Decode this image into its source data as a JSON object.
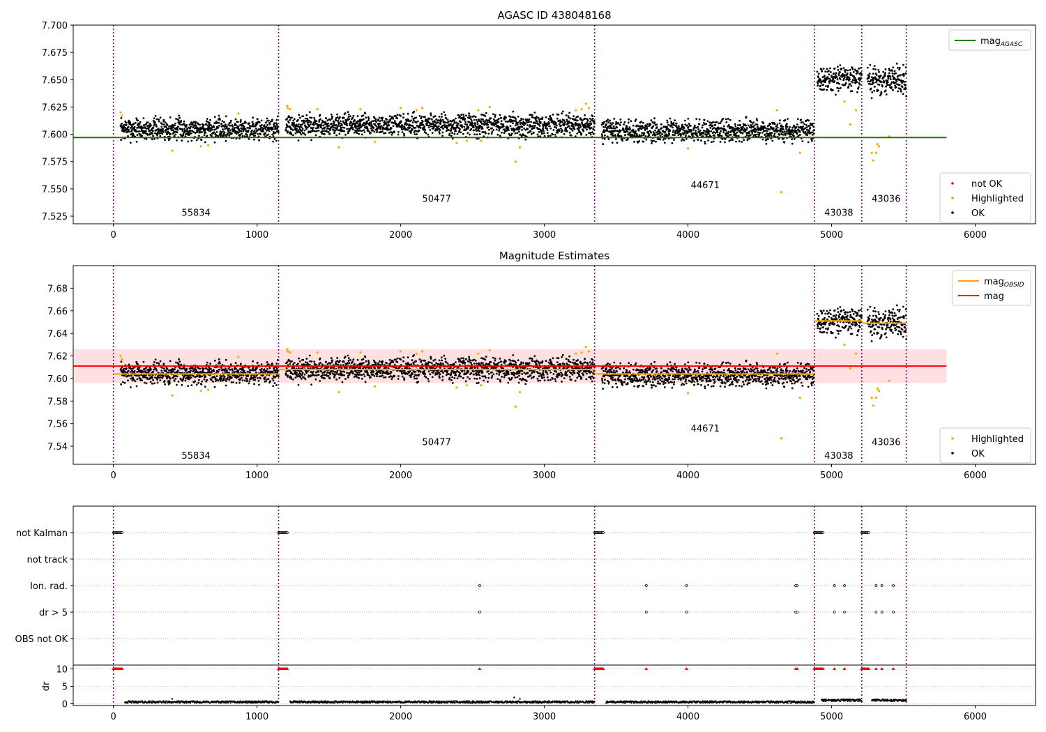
{
  "chart_data": [
    {
      "type": "scatter",
      "title": "AGASC ID 438048168",
      "xlim": [
        -280,
        6420
      ],
      "ylim": [
        7.518,
        7.7
      ],
      "x_ticks": [
        0,
        1000,
        2000,
        3000,
        4000,
        5000,
        6000
      ],
      "y_ticks": [
        "7.525",
        "7.550",
        "7.575",
        "7.600",
        "7.625",
        "7.650",
        "7.675",
        "7.700"
      ],
      "grid": false,
      "legend_top": {
        "position": "top-right",
        "entries": [
          {
            "label": "mag",
            "sub": "AGASC",
            "color": "#008000"
          }
        ]
      },
      "legend_bottom": {
        "position": "bottom-right",
        "entries": [
          {
            "label": "not OK",
            "color": "#ff0000"
          },
          {
            "label": "Highlighted",
            "color": "#ffa500"
          },
          {
            "label": "OK",
            "color": "#000000"
          }
        ]
      },
      "mag_agasc": 7.597,
      "mag_agasc_x": [
        -280,
        5800
      ],
      "obs_boundaries": [
        0,
        1150,
        3350,
        4880,
        5210,
        5520
      ],
      "segments": [
        {
          "obsid": "55834",
          "x_start": 50,
          "x_end": 1150,
          "mean": 7.605,
          "scatter": 0.005
        },
        {
          "obsid": "50477",
          "x_start": 1200,
          "x_end": 3350,
          "mean": 7.608,
          "scatter": 0.005
        },
        {
          "obsid": "44671",
          "x_start": 3400,
          "x_end": 4880,
          "mean": 7.603,
          "scatter": 0.005
        },
        {
          "obsid": "43038",
          "x_start": 4900,
          "x_end": 5210,
          "mean": 7.651,
          "scatter": 0.006
        },
        {
          "obsid": "43036",
          "x_start": 5250,
          "x_end": 5520,
          "mean": 7.649,
          "scatter": 0.006
        }
      ],
      "obsid_labels": [
        {
          "text": "55834",
          "x": 575,
          "y": 7.5255
        },
        {
          "text": "50477",
          "x": 2250,
          "y": 7.538
        },
        {
          "text": "44671",
          "x": 4120,
          "y": 7.5505
        },
        {
          "text": "43038",
          "x": 5050,
          "y": 7.5255
        },
        {
          "text": "43036",
          "x": 5380,
          "y": 7.538
        }
      ],
      "highlighted_points": [
        [
          50,
          7.62
        ],
        [
          60,
          7.617
        ],
        [
          410,
          7.585
        ],
        [
          610,
          7.589
        ],
        [
          660,
          7.59
        ],
        [
          870,
          7.619
        ],
        [
          1210,
          7.626
        ],
        [
          1215,
          7.624
        ],
        [
          1230,
          7.623
        ],
        [
          1420,
          7.623
        ],
        [
          1570,
          7.588
        ],
        [
          1720,
          7.623
        ],
        [
          1820,
          7.593
        ],
        [
          2000,
          7.624
        ],
        [
          2110,
          7.622
        ],
        [
          2150,
          7.624
        ],
        [
          2390,
          7.592
        ],
        [
          2460,
          7.594
        ],
        [
          2540,
          7.622
        ],
        [
          2560,
          7.594
        ],
        [
          2620,
          7.625
        ],
        [
          2800,
          7.575
        ],
        [
          2830,
          7.588
        ],
        [
          3220,
          7.622
        ],
        [
          3260,
          7.623
        ],
        [
          3290,
          7.628
        ],
        [
          3310,
          7.624
        ],
        [
          4000,
          7.587
        ],
        [
          4650,
          7.547
        ],
        [
          4780,
          7.583
        ],
        [
          4620,
          7.622
        ],
        [
          5090,
          7.63
        ],
        [
          5130,
          7.609
        ],
        [
          5170,
          7.622
        ],
        [
          5280,
          7.583
        ],
        [
          5290,
          7.576
        ],
        [
          5310,
          7.583
        ],
        [
          5320,
          7.591
        ],
        [
          5330,
          7.589
        ],
        [
          5400,
          7.598
        ]
      ],
      "not_ok_points": []
    },
    {
      "type": "scatter",
      "title": "Magnitude Estimates",
      "xlim": [
        -280,
        6420
      ],
      "ylim": [
        7.524,
        7.7
      ],
      "x_ticks": [
        0,
        1000,
        2000,
        3000,
        4000,
        5000,
        6000
      ],
      "y_ticks": [
        "7.54",
        "7.56",
        "7.58",
        "7.60",
        "7.62",
        "7.64",
        "7.66",
        "7.68"
      ],
      "grid": false,
      "legend_top": {
        "position": "top-right",
        "entries": [
          {
            "label": "mag",
            "sub": "OBSID",
            "color": "#ffa500"
          },
          {
            "label": "mag",
            "sub": "",
            "color": "#ff0000"
          }
        ]
      },
      "legend_bottom": {
        "position": "bottom-right",
        "entries": [
          {
            "label": "Highlighted",
            "color": "#ffa500"
          },
          {
            "label": "OK",
            "color": "#000000"
          }
        ]
      },
      "mag": 7.611,
      "mag_band": [
        7.596,
        7.626
      ],
      "mag_x": [
        -280,
        5800
      ],
      "mag_obsid": [
        {
          "x_start": 0,
          "x_end": 1150,
          "y": 7.604
        },
        {
          "x_start": 1150,
          "x_end": 3350,
          "y": 7.608
        },
        {
          "x_start": 3350,
          "x_end": 4880,
          "y": 7.604
        },
        {
          "x_start": 4880,
          "x_end": 5210,
          "y": 7.651
        },
        {
          "x_start": 5210,
          "x_end": 5520,
          "y": 7.649
        }
      ],
      "obsid_labels": [
        {
          "text": "55834",
          "x": 575,
          "y": 7.529
        },
        {
          "text": "50477",
          "x": 2250,
          "y": 7.541
        },
        {
          "text": "44671",
          "x": 4120,
          "y": 7.553
        },
        {
          "text": "43038",
          "x": 5050,
          "y": 7.529
        },
        {
          "text": "43036",
          "x": 5380,
          "y": 7.541
        }
      ]
    },
    {
      "type": "scatter",
      "title": "",
      "xlim": [
        -280,
        6420
      ],
      "x_ticks": [
        0,
        1000,
        2000,
        3000,
        4000,
        5000,
        6000
      ],
      "flag_rows": [
        "not Kalman",
        "not track",
        "Ion. rad.",
        "dr > 5",
        "OBS not OK"
      ],
      "flag_points": {
        "not Kalman": [
          [
            0,
            60
          ],
          [
            1150,
            1210
          ],
          [
            3350,
            3410
          ],
          [
            4880,
            4940
          ],
          [
            5210,
            5260
          ]
        ],
        "not track": [],
        "Ion. rad.": [
          2550,
          3710,
          3990,
          4750,
          4760,
          5020,
          5090,
          5310,
          5350,
          5430
        ],
        "dr > 5": [
          2550,
          3710,
          3990,
          4750,
          4760,
          5020,
          5090,
          5310,
          5350,
          5430
        ],
        "OBS not OK": []
      },
      "dr_ylabel": "dr",
      "dr_ylim": [
        -0.5,
        10.5
      ],
      "dr_ticks": [
        "0",
        "5",
        "10"
      ],
      "dr_capped_points": [
        2550,
        3710,
        3990,
        4750,
        4760,
        5020,
        5090,
        5310,
        5350,
        5430
      ],
      "dr_outliers": [
        [
          410,
          1.4
        ],
        [
          2790,
          1.8
        ],
        [
          2830,
          1.4
        ],
        [
          4950,
          1.2
        ]
      ]
    }
  ]
}
